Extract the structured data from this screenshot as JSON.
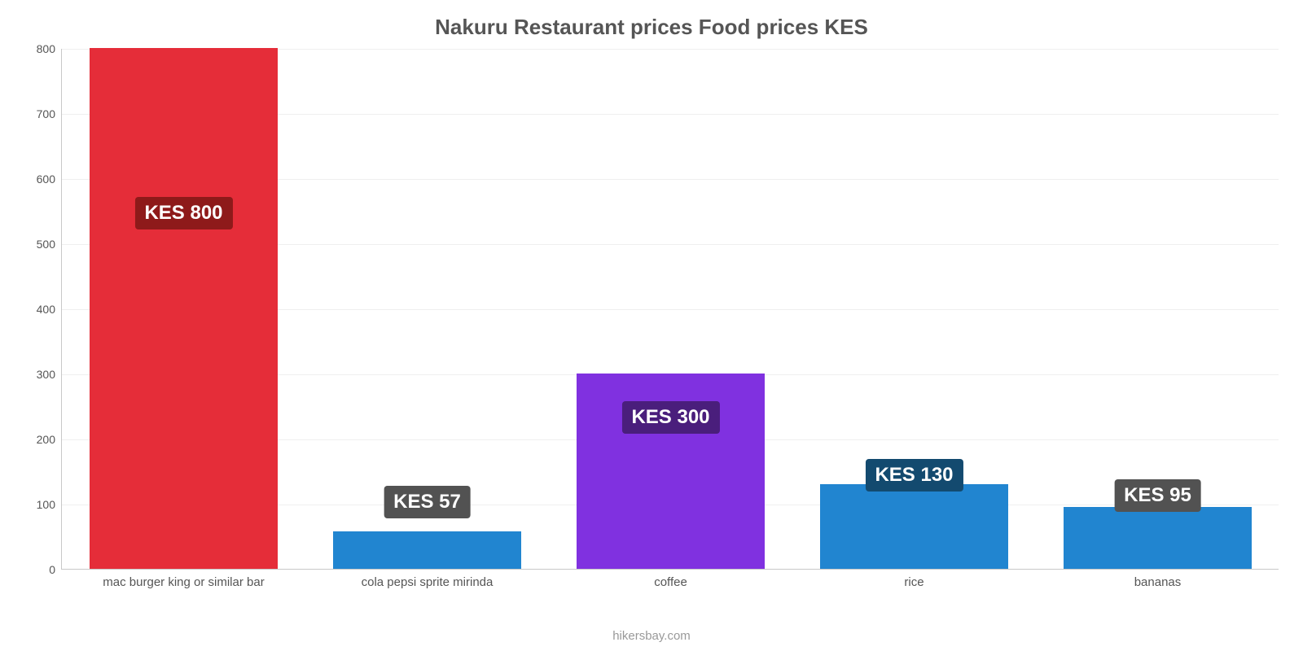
{
  "chart": {
    "type": "bar",
    "title": "Nakuru Restaurant prices Food prices KES",
    "title_fontsize": 26,
    "title_color": "#555555",
    "footer": "hikersbay.com",
    "footer_color": "#999999",
    "background_color": "#ffffff",
    "grid_color": "#efefef",
    "axis_color": "#c8c8c8",
    "label_color": "#555555",
    "tick_fontsize": 14,
    "xlabel_fontsize": 15,
    "value_label_fontsize": 24,
    "value_label_text_color": "#ffffff",
    "ylim": [
      0,
      800
    ],
    "yticks": [
      0,
      100,
      200,
      300,
      400,
      500,
      600,
      700,
      800
    ],
    "bar_width_ratio": 0.77,
    "categories": [
      "mac burger king or similar bar",
      "cola pepsi sprite mirinda",
      "coffee",
      "rice",
      "bananas"
    ],
    "values": [
      800,
      57,
      300,
      130,
      95
    ],
    "value_labels": [
      "KES 800",
      "KES 57",
      "KES 300",
      "KES 130",
      "KES 95"
    ],
    "bar_colors": [
      "#e52d39",
      "#2185d0",
      "#8031e0",
      "#2185d0",
      "#2185d0"
    ],
    "value_label_bg": [
      "#8e1a1a",
      "#525252",
      "#4a1e7c",
      "#134a6f",
      "#525252"
    ],
    "label_positions_y": [
      435,
      80,
      184,
      113,
      88
    ]
  }
}
